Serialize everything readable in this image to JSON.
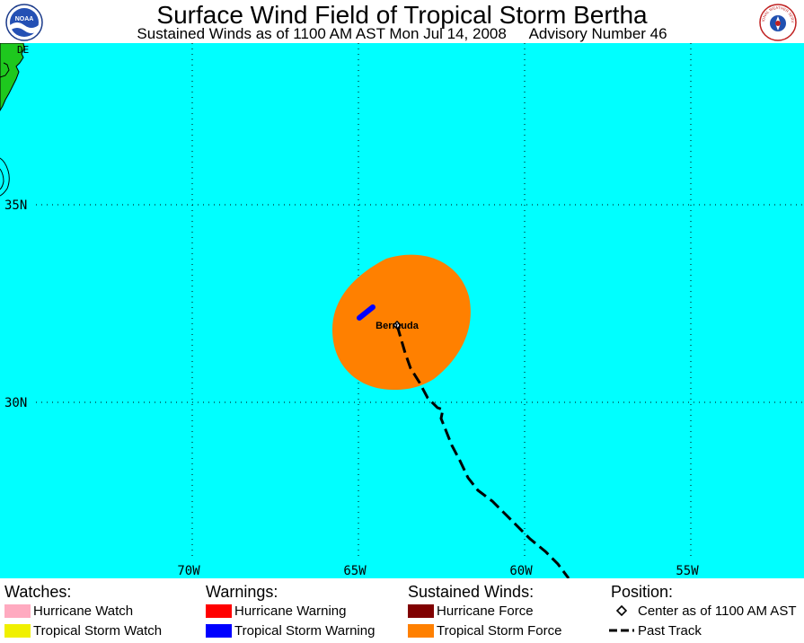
{
  "header": {
    "title": "Surface Wind Field of Tropical Storm Bertha",
    "subtitle_left": "Sustained Winds as of 1100 AM AST Mon Jul 14, 2008",
    "subtitle_right": "Advisory Number 46",
    "logo_left_text": "NOAA",
    "logo_right_text": "NATIONAL WEATHER SERVICE"
  },
  "map": {
    "latitude_labels": [
      "35N",
      "30N"
    ],
    "longitude_labels": [
      "70W",
      "65W",
      "60W",
      "55W"
    ],
    "place_label": "Bermuda",
    "partial_label": "DE",
    "colors": {
      "ocean": "#00ffff",
      "land": "#1ec81e",
      "tropical_storm_force": "#ff8000",
      "tropical_storm_warning": "#0000ff",
      "gridline": "#000000"
    }
  },
  "legend": {
    "watches": {
      "heading": "Watches:",
      "items": [
        {
          "label": "Hurricane Watch",
          "color": "#ffaac0"
        },
        {
          "label": "Tropical Storm Watch",
          "color": "#f0f000"
        }
      ]
    },
    "warnings": {
      "heading": "Warnings:",
      "items": [
        {
          "label": "Hurricane Warning",
          "color": "#ff0000"
        },
        {
          "label": "Tropical Storm Warning",
          "color": "#0000ff"
        }
      ]
    },
    "winds": {
      "heading": "Sustained Winds:",
      "items": [
        {
          "label": "Hurricane Force",
          "color": "#800000"
        },
        {
          "label": "Tropical Storm Force",
          "color": "#ff8000"
        }
      ]
    },
    "position": {
      "heading": "Position:",
      "items": [
        {
          "label": "Center as of 1100 AM AST",
          "icon": "diamond-icon"
        },
        {
          "label": "Past Track",
          "icon": "dashed-line-icon"
        }
      ]
    }
  }
}
